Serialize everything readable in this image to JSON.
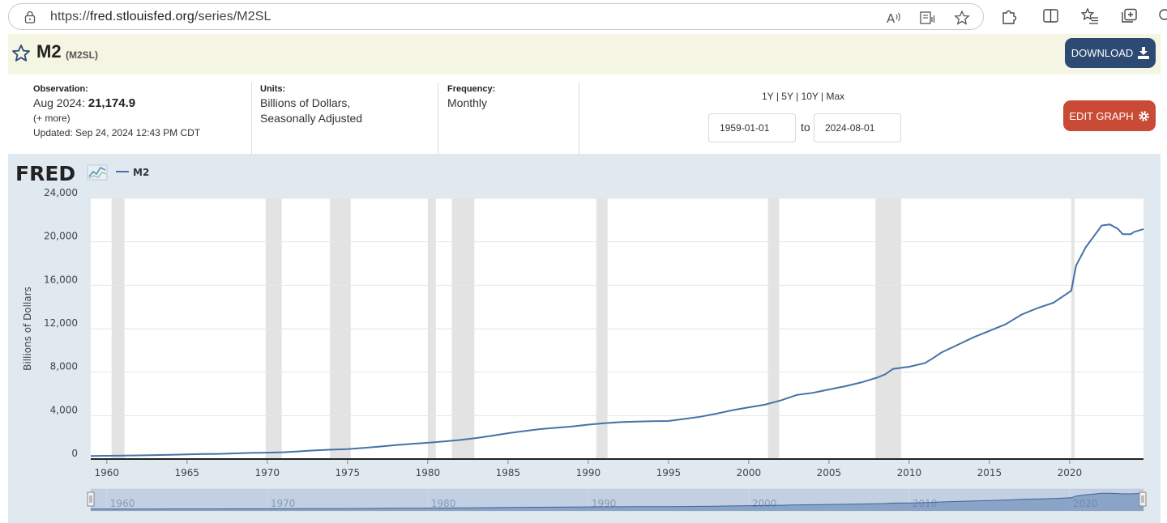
{
  "browser": {
    "url_prefix": "https://",
    "url_host": "fred.stlouisfed.org",
    "url_path": "/series/M2SL",
    "read_aloud_icon": "read-aloud-icon",
    "immersive_reader_icon": "immersive-reader-icon",
    "favorite_icon": "star-outline-icon",
    "extensions_icon": "puzzle-icon",
    "split_screen_icon": "split-screen-icon",
    "favorites_bar_icon": "favorites-list-icon",
    "collections_icon": "collections-icon",
    "copilot_icon": "copilot-icon"
  },
  "header": {
    "title": "M2",
    "series_id": "(M2SL)",
    "download_label": "DOWNLOAD"
  },
  "info": {
    "observation_label": "Observation:",
    "observation_date": "Aug 2024:",
    "observation_value": "21,174.9",
    "more_link": "(+ more)",
    "updated_label": "Updated:",
    "updated_value": "Sep 24, 2024 12:43 PM CDT",
    "units_label": "Units:",
    "units_line1": "Billions of Dollars,",
    "units_line2": "Seasonally Adjusted",
    "frequency_label": "Frequency:",
    "frequency_value": "Monthly",
    "range_links": [
      "1Y",
      "5Y",
      "10Y",
      "Max"
    ],
    "range_sep": "|",
    "start_date": "1959-01-01",
    "to_label": "to",
    "end_date": "2024-08-01",
    "edit_label": "EDIT GRAPH"
  },
  "colors": {
    "series": "#4572a7",
    "download_button": "#2d4a73",
    "edit_button": "#c94a35",
    "recession": "#e3e3e3",
    "panel": "#e1e9f0"
  },
  "chart_data": {
    "type": "line",
    "logo": "FRED",
    "legend": [
      "M2"
    ],
    "ylabel": "Billions of Dollars",
    "ylim": [
      0,
      24000
    ],
    "xlim": [
      1959.0,
      2024.6
    ],
    "yticks": [
      0,
      4000,
      8000,
      12000,
      16000,
      20000,
      24000
    ],
    "ytick_labels": [
      "0",
      "4,000",
      "8,000",
      "12,000",
      "16,000",
      "20,000",
      "24,000"
    ],
    "xticks": [
      "1960",
      "1965",
      "1970",
      "1975",
      "1980",
      "1985",
      "1990",
      "1995",
      "2000",
      "2005",
      "2010",
      "2015",
      "2020"
    ],
    "navigator_labels": [
      "1960",
      "1970",
      "1980",
      "1990",
      "2000",
      "2010",
      "2020"
    ],
    "grid": true,
    "recessions": [
      [
        1960.3,
        1961.1
      ],
      [
        1969.9,
        1970.9
      ],
      [
        1973.9,
        1975.2
      ],
      [
        1980.0,
        1980.5
      ],
      [
        1981.5,
        1982.9
      ],
      [
        1990.5,
        1991.2
      ],
      [
        2001.2,
        2001.9
      ],
      [
        2007.9,
        2009.5
      ],
      [
        2020.1,
        2020.3
      ]
    ],
    "series": [
      {
        "name": "M2",
        "x": [
          1959.0,
          1960.0,
          1961.0,
          1962.0,
          1963.0,
          1964.0,
          1965.0,
          1966.0,
          1967.0,
          1968.0,
          1969.0,
          1970.0,
          1971.0,
          1972.0,
          1973.0,
          1974.0,
          1975.0,
          1976.0,
          1977.0,
          1978.0,
          1979.0,
          1980.0,
          1981.0,
          1982.0,
          1983.0,
          1984.0,
          1985.0,
          1986.0,
          1987.0,
          1988.0,
          1989.0,
          1990.0,
          1991.0,
          1992.0,
          1993.0,
          1994.0,
          1995.0,
          1996.0,
          1997.0,
          1998.0,
          1999.0,
          2000.0,
          2001.0,
          2002.0,
          2003.0,
          2004.0,
          2005.0,
          2006.0,
          2007.0,
          2008.0,
          2008.5,
          2009.0,
          2010.0,
          2011.0,
          2011.5,
          2012.0,
          2013.0,
          2014.0,
          2015.0,
          2016.0,
          2017.0,
          2018.0,
          2019.0,
          2020.0,
          2020.1,
          2020.4,
          2021.0,
          2021.5,
          2022.0,
          2022.5,
          2023.0,
          2023.3,
          2023.8,
          2024.0,
          2024.6
        ],
        "y": [
          286,
          300,
          312,
          335,
          362,
          393,
          424,
          459,
          480,
          525,
          567,
          587,
          626,
          710,
          805,
          862,
          920,
          1020,
          1150,
          1283,
          1397,
          1500,
          1615,
          1750,
          1930,
          2150,
          2380,
          2570,
          2760,
          2880,
          3000,
          3170,
          3300,
          3400,
          3440,
          3480,
          3500,
          3700,
          3900,
          4180,
          4500,
          4760,
          5000,
          5400,
          5900,
          6100,
          6400,
          6700,
          7050,
          7500,
          7800,
          8300,
          8500,
          8850,
          9300,
          9800,
          10500,
          11200,
          11800,
          12400,
          13300,
          13900,
          14400,
          15400,
          15500,
          17800,
          19500,
          20500,
          21500,
          21600,
          21200,
          20700,
          20700,
          20900,
          21175
        ]
      }
    ]
  }
}
